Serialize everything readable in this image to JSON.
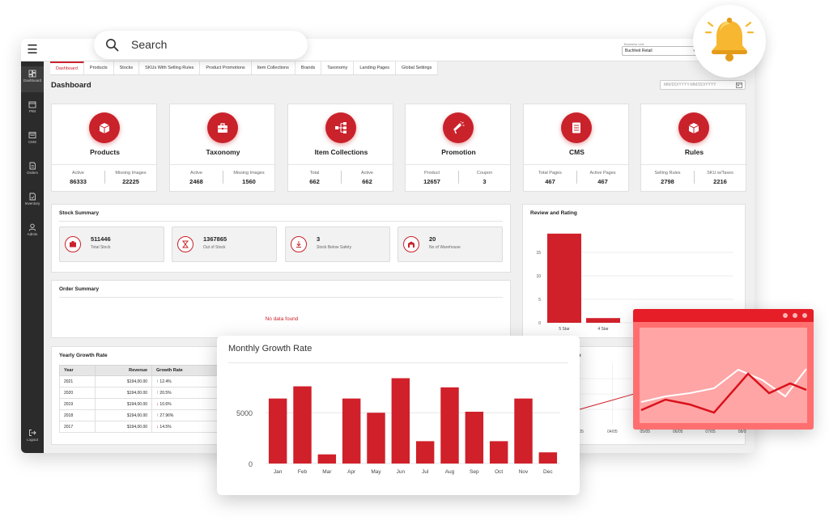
{
  "search": {
    "placeholder": "Search"
  },
  "business_unit": {
    "label": "Business Unit",
    "value": "Buchheit Retail"
  },
  "sidebar": {
    "items": [
      {
        "label": "Dashboard",
        "icon": "dashboard-icon"
      },
      {
        "label": "PIM",
        "icon": "box-icon"
      },
      {
        "label": "CMS",
        "icon": "cms-icon"
      },
      {
        "label": "Orders",
        "icon": "orders-icon"
      },
      {
        "label": "Inventory",
        "icon": "inventory-icon"
      },
      {
        "label": "Admin",
        "icon": "user-icon"
      },
      {
        "label": "Logout",
        "icon": "logout-icon"
      }
    ]
  },
  "tabs": [
    "Dashboard",
    "Products",
    "Stocks",
    "SKUs With Selling Rules",
    "Product Promotions",
    "Item Collections",
    "Brands",
    "Taxonomy",
    "Landing Pages",
    "Global Settings"
  ],
  "page": {
    "title": "Dashboard",
    "date_placeholder": "MM/DD/YYYY-MM/DD/YYYY"
  },
  "cards": [
    {
      "name": "Products",
      "icon": "box-icon",
      "stats": [
        {
          "label": "Active",
          "value": "86333"
        },
        {
          "label": "Missing Images",
          "value": "22225"
        }
      ]
    },
    {
      "name": "Taxonomy",
      "icon": "briefcase-icon",
      "stats": [
        {
          "label": "Active",
          "value": "2468"
        },
        {
          "label": "Missing Images",
          "value": "1560"
        }
      ]
    },
    {
      "name": "Item Collections",
      "icon": "hierarchy-icon",
      "stats": [
        {
          "label": "Total",
          "value": "662"
        },
        {
          "label": "Active",
          "value": "662"
        }
      ]
    },
    {
      "name": "Promotion",
      "icon": "megaphone-icon",
      "stats": [
        {
          "label": "Product",
          "value": "12657"
        },
        {
          "label": "Coupon",
          "value": "3"
        }
      ]
    },
    {
      "name": "CMS",
      "icon": "document-icon",
      "stats": [
        {
          "label": "Total Pages",
          "value": "467"
        },
        {
          "label": "Active Pages",
          "value": "467"
        }
      ]
    },
    {
      "name": "Rules",
      "icon": "box-icon",
      "stats": [
        {
          "label": "Selling Rules",
          "value": "2798"
        },
        {
          "label": "SKU w/Taxes",
          "value": "2216"
        }
      ]
    }
  ],
  "stock_summary": {
    "title": "Stock Summary",
    "items": [
      {
        "value": "511446",
        "label": "Total Stock",
        "icon": "box-icon"
      },
      {
        "value": "1367865",
        "label": "Out of Stock",
        "icon": "hourglass-icon"
      },
      {
        "value": "3",
        "label": "Stock Below Safety",
        "icon": "download-icon"
      },
      {
        "value": "20",
        "label": "No of Warehouse",
        "icon": "warehouse-icon"
      }
    ]
  },
  "order_summary": {
    "title": "Order Summary",
    "empty": "No data found"
  },
  "yearly_growth": {
    "title": "Yearly Growth Rate",
    "columns": [
      "Year",
      "Revenue",
      "Growth Rate"
    ],
    "rows": [
      {
        "year": "2021",
        "revenue": "$194,00.00",
        "growth": "12.4%",
        "trend": "up"
      },
      {
        "year": "2020",
        "revenue": "$194,00.00",
        "growth": "20.5%",
        "trend": "up"
      },
      {
        "year": "2019",
        "revenue": "$194,00.00",
        "growth": "10.6%",
        "trend": "down"
      },
      {
        "year": "2018",
        "revenue": "$194,00.00",
        "growth": "27.96%",
        "trend": "up"
      },
      {
        "year": "2017",
        "revenue": "$194,00.00",
        "growth": "14.5%",
        "trend": "down"
      }
    ]
  },
  "review_rating": {
    "title": "Review and Rating"
  },
  "hidden_panel_title_fragment": "e",
  "colors": {
    "accent": "#c9222b",
    "sidebar": "#2b2b2b",
    "overlay_red": "#ff6f6f"
  },
  "chart_data": [
    {
      "type": "bar",
      "title": "Monthly Growth Rate",
      "categories": [
        "Jan",
        "Feb",
        "Mar",
        "Apr",
        "May",
        "Jun",
        "Jul",
        "Aug",
        "Sep",
        "Oct",
        "Nov",
        "Dec"
      ],
      "values": [
        6400,
        7600,
        900,
        6400,
        5000,
        8400,
        2200,
        7500,
        5100,
        2200,
        6400,
        1100
      ],
      "yticks": [
        0,
        5000
      ],
      "ylim": [
        0,
        9000
      ]
    },
    {
      "type": "bar",
      "title": "Review and Rating",
      "categories": [
        "5 Star",
        "4 Star"
      ],
      "values": [
        19,
        1
      ],
      "yticks": [
        0,
        5,
        10,
        15
      ],
      "ylim": [
        0,
        20
      ]
    },
    {
      "type": "line",
      "x": [
        "3/05",
        "04/05",
        "05/05",
        "06/05",
        "07/05",
        "08/05"
      ],
      "values": [
        2.5,
        4,
        5.5,
        7,
        8,
        8.5
      ],
      "ylim": [
        0,
        10
      ]
    }
  ]
}
